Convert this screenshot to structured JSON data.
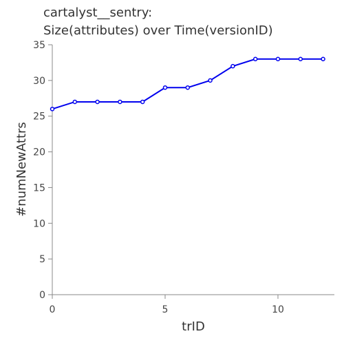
{
  "chart_data": {
    "type": "line",
    "title_line1": "cartalyst__sentry:",
    "title_line2": "Size(attributes) over Time(versionID)",
    "xlabel": "trID",
    "ylabel": "#numNewAttrs",
    "xlim": [
      0,
      12.5
    ],
    "ylim": [
      0,
      35
    ],
    "xticks": [
      0,
      5,
      10
    ],
    "yticks": [
      0,
      5,
      10,
      15,
      20,
      25,
      30,
      35
    ],
    "grid": false,
    "line_color": "#0000ee",
    "series": [
      {
        "x": [
          0,
          1,
          2,
          3,
          4,
          5,
          6,
          7,
          8,
          9,
          10,
          11,
          12
        ],
        "values": [
          26,
          27,
          27,
          27,
          27,
          29,
          29,
          30,
          32,
          33,
          33,
          33,
          33
        ]
      }
    ]
  }
}
